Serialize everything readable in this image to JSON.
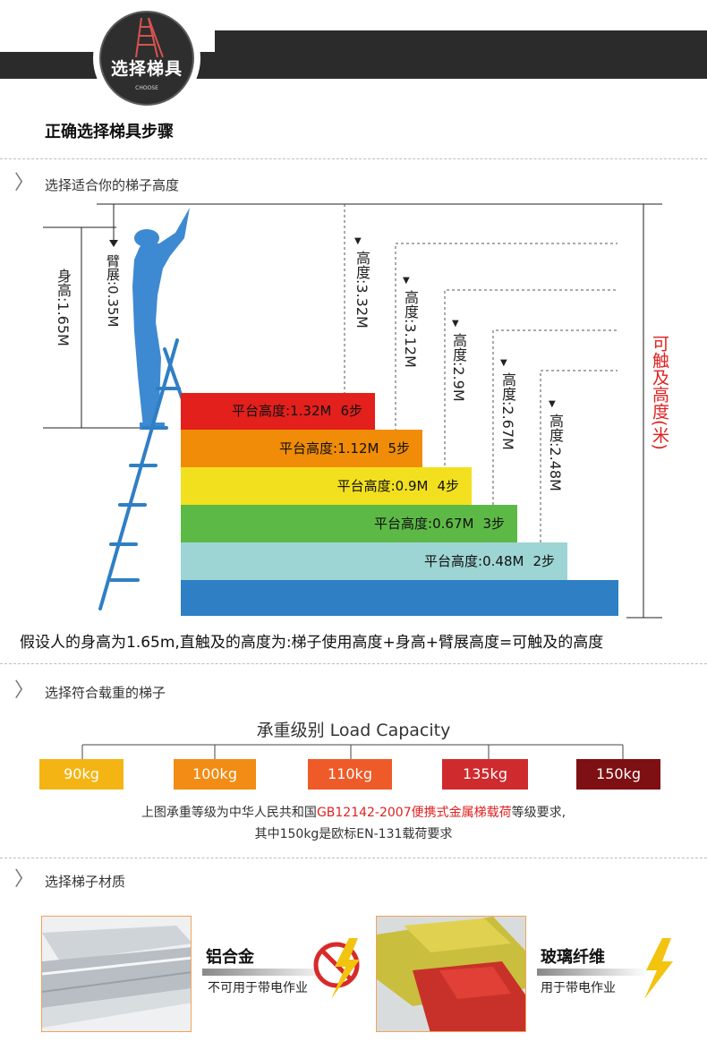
{
  "header": {
    "badge_title": "选择梯具",
    "badge_sub": "CHOOSE",
    "subtitle": "正确选择梯具步骤"
  },
  "section1": {
    "title": "选择适合你的梯子高度",
    "body_height_label": "身高:1.65M",
    "arm_span_label": "臂展:0.35M",
    "reach_label": "可触及高度(米)",
    "reach_heights": [
      "高度:3.32M",
      "高度:3.12M",
      "高度:2.9M",
      "高度:2.67M",
      "高度:2.48M"
    ],
    "steps": [
      {
        "platform": "平台高度:1.32M",
        "count": "6步",
        "color": "#e3201c"
      },
      {
        "platform": "平台高度:1.12M",
        "count": "5步",
        "color": "#f08c07"
      },
      {
        "platform": "平台高度:0.9M",
        "count": "4步",
        "color": "#f2e01f"
      },
      {
        "platform": "平台高度:0.67M",
        "count": "3步",
        "color": "#5db946"
      },
      {
        "platform": "平台高度:0.48M",
        "count": "2步",
        "color": "#9dd4d4"
      }
    ],
    "base_color": "#2f7fc4",
    "caption": "假设人的身高为1.65m,直触及的高度为:梯子使用高度+身高+臂展高度=可触及的高度"
  },
  "section2": {
    "title": "选择符合载重的梯子",
    "chart_title": "承重级别   Load Capacity",
    "levels": [
      {
        "label": "90kg",
        "color": "#f4b514"
      },
      {
        "label": "100kg",
        "color": "#f28c14"
      },
      {
        "label": "110kg",
        "color": "#ee5a28"
      },
      {
        "label": "135kg",
        "color": "#cf2a2d"
      },
      {
        "label": "150kg",
        "color": "#7e0f12"
      }
    ],
    "note_prefix": "上图承重等级为中华人民共和国",
    "note_red": "GB12142-2007便携式金属梯载荷",
    "note_suffix": "等级要求,",
    "note_line2": "其中150kg是欧标EN-131载荷要求"
  },
  "section3": {
    "title": "选择梯子材质",
    "materials": [
      {
        "name": "铝合金",
        "desc": "不可用于带电作业"
      },
      {
        "name": "玻璃纤维",
        "desc": "用于带电作业"
      }
    ]
  }
}
